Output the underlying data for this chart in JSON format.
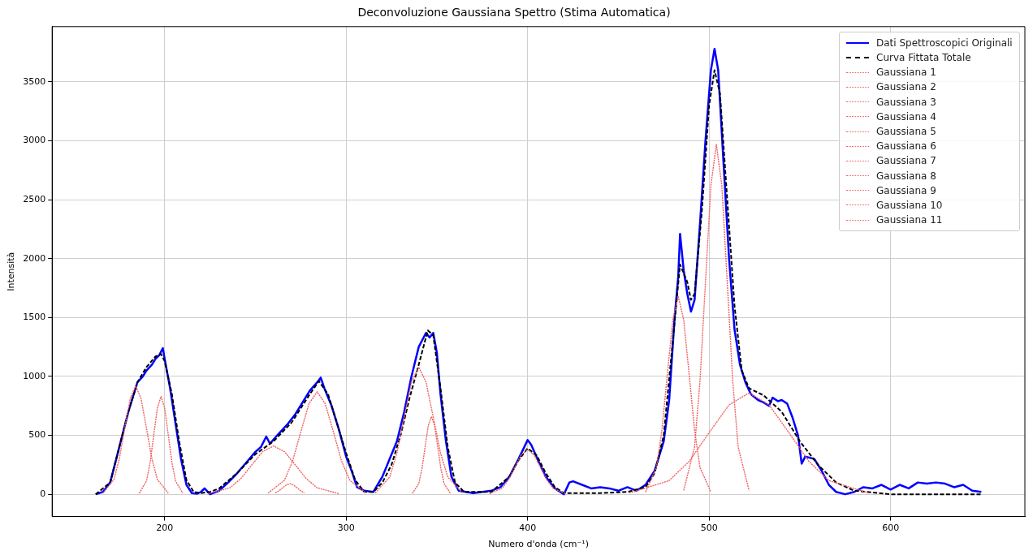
{
  "chart_data": {
    "type": "line",
    "title": "Deconvoluzione Gaussiana Spettro (Stima Automatica)",
    "xlabel": "Numero d'onda (cm⁻¹)",
    "ylabel": "Intensità",
    "xlim": [
      138,
      674
    ],
    "ylim": [
      -189,
      3969
    ],
    "xticks": [
      200,
      300,
      400,
      500,
      600
    ],
    "yticks": [
      0,
      500,
      1000,
      1500,
      2000,
      2500,
      3000,
      3500
    ],
    "grid": true,
    "legend": "top right",
    "series": [
      {
        "name": "Dati Spettroscopici Originali",
        "color": "#0000ff",
        "line_style": "solid",
        "x": [
          162,
          166,
          170,
          175,
          180,
          185,
          188,
          190,
          193,
          195,
          197,
          199,
          200,
          203,
          206,
          209,
          212,
          215,
          218,
          220,
          222,
          225,
          230,
          235,
          240,
          245,
          250,
          253,
          256,
          258,
          262,
          265,
          268,
          272,
          276,
          280,
          284,
          286,
          288,
          292,
          296,
          300,
          303,
          306,
          310,
          315,
          320,
          324,
          328,
          332,
          336,
          340,
          344,
          346,
          348,
          350,
          352,
          355,
          358,
          362,
          370,
          375,
          380,
          385,
          390,
          395,
          400,
          402,
          406,
          410,
          415,
          420,
          423,
          425,
          430,
          435,
          440,
          445,
          450,
          455,
          460,
          465,
          470,
          475,
          478,
          481,
          483,
          484,
          486,
          488,
          490,
          492,
          495,
          498,
          501,
          503,
          505,
          508,
          511,
          514,
          517,
          520,
          523,
          527,
          530,
          533,
          535,
          538,
          540,
          543,
          546,
          549,
          551,
          553,
          558,
          562,
          566,
          570,
          575,
          580,
          585,
          590,
          595,
          600,
          605,
          610,
          615,
          620,
          625,
          630,
          635,
          640,
          645,
          650
        ],
        "values": [
          0,
          20,
          100,
          400,
          700,
          950,
          1000,
          1050,
          1100,
          1150,
          1180,
          1240,
          1150,
          900,
          600,
          300,
          80,
          10,
          5,
          20,
          50,
          0,
          30,
          100,
          180,
          270,
          360,
          400,
          490,
          430,
          500,
          550,
          600,
          680,
          780,
          880,
          950,
          990,
          900,
          750,
          550,
          320,
          200,
          60,
          30,
          20,
          150,
          300,
          450,
          700,
          1000,
          1250,
          1370,
          1330,
          1370,
          1200,
          850,
          450,
          150,
          30,
          10,
          20,
          30,
          60,
          150,
          300,
          460,
          420,
          280,
          150,
          50,
          0,
          100,
          110,
          80,
          50,
          60,
          50,
          30,
          60,
          30,
          80,
          200,
          450,
          800,
          1500,
          1850,
          2210,
          1900,
          1700,
          1550,
          1650,
          2300,
          3000,
          3600,
          3780,
          3600,
          2800,
          2000,
          1400,
          1100,
          950,
          850,
          800,
          780,
          750,
          820,
          790,
          800,
          770,
          650,
          500,
          260,
          320,
          300,
          200,
          80,
          20,
          0,
          20,
          60,
          50,
          80,
          40,
          80,
          50,
          100,
          90,
          100,
          90,
          60,
          80,
          30,
          20
        ]
      },
      {
        "name": "Curva Fittata Totale",
        "color": "#000000",
        "line_style": "dashed",
        "x": [
          162,
          170,
          175,
          180,
          185,
          190,
          195,
          198,
          200,
          204,
          208,
          212,
          216,
          220,
          225,
          230,
          240,
          250,
          260,
          270,
          280,
          285,
          290,
          295,
          300,
          305,
          310,
          315,
          320,
          325,
          330,
          335,
          340,
          345,
          348,
          352,
          356,
          360,
          365,
          380,
          390,
          395,
          400,
          405,
          410,
          415,
          420,
          440,
          455,
          465,
          470,
          475,
          480,
          484,
          488,
          490,
          492,
          496,
          500,
          503,
          506,
          510,
          514,
          518,
          522,
          530,
          540,
          550,
          560,
          570,
          580,
          600,
          650
        ],
        "values": [
          0,
          100,
          400,
          700,
          950,
          1080,
          1170,
          1190,
          1130,
          850,
          450,
          120,
          20,
          10,
          20,
          50,
          180,
          340,
          450,
          610,
          850,
          960,
          850,
          600,
          350,
          120,
          20,
          20,
          100,
          250,
          500,
          820,
          1100,
          1390,
          1350,
          900,
          400,
          100,
          20,
          20,
          150,
          290,
          390,
          330,
          180,
          60,
          10,
          10,
          20,
          60,
          180,
          500,
          1300,
          1950,
          1800,
          1650,
          1700,
          2400,
          3300,
          3600,
          3400,
          2500,
          1600,
          1050,
          900,
          840,
          700,
          450,
          250,
          100,
          30,
          0,
          0
        ]
      },
      {
        "name": "Gaussiana 1",
        "color": "#f06060",
        "line_style": "dotted",
        "x": [
          166,
          172,
          175,
          178,
          181,
          184,
          187,
          190,
          193,
          196,
          202
        ],
        "values": [
          10,
          125,
          299,
          558,
          812,
          920,
          812,
          558,
          299,
          125,
          10
        ]
      },
      {
        "name": "Gaussiana 2",
        "color": "#f06060",
        "line_style": "dotted",
        "x": [
          186,
          190,
          192,
          194,
          196,
          198,
          200,
          202,
          204,
          206,
          210
        ],
        "values": [
          9,
          112,
          270,
          503,
          732,
          830,
          732,
          503,
          270,
          112,
          9
        ]
      },
      {
        "name": "Gaussiana 3",
        "color": "#f06060",
        "line_style": "dotted",
        "x": [
          224,
          236,
          242,
          248,
          254,
          260,
          266,
          272,
          278,
          284,
          296
        ],
        "values": [
          5,
          55,
          133,
          249,
          362,
          410,
          362,
          249,
          133,
          55,
          5
        ]
      },
      {
        "name": "Gaussiana 4",
        "color": "#f06060",
        "line_style": "dotted",
        "x": [
          261,
          263,
          265,
          267,
          269,
          271,
          273,
          275,
          277
        ],
        "values": [
          12,
          29,
          55,
          79,
          90,
          79,
          55,
          29,
          12
        ]
      },
      {
        "name": "Gaussiana 5",
        "color": "#f06060",
        "line_style": "dotted",
        "x": [
          257,
          266,
          270.5,
          275,
          279.5,
          284,
          288.5,
          293,
          297.5,
          302,
          311
        ],
        "values": [
          10,
          118,
          282,
          528,
          768,
          870,
          768,
          528,
          282,
          118,
          10
        ]
      },
      {
        "name": "Gaussiana 6",
        "color": "#f06060",
        "line_style": "dotted",
        "x": [
          316,
          324,
          328,
          332,
          336,
          340,
          344,
          348,
          352,
          356,
          364
        ],
        "values": [
          12,
          146,
          351,
          655,
          953,
          1080,
          953,
          655,
          351,
          146,
          12
        ]
      },
      {
        "name": "Gaussiana 7",
        "color": "#f06060",
        "line_style": "dotted",
        "x": [
          336.5,
          340,
          341.75,
          343.5,
          345.25,
          347,
          348.75,
          350.5,
          352.25,
          354,
          357.5
        ],
        "values": [
          7,
          89,
          214,
          400,
          582,
          660,
          582,
          400,
          214,
          89,
          7
        ]
      },
      {
        "name": "Gaussiana 8",
        "color": "#f06060",
        "line_style": "dotted",
        "x": [
          379,
          386,
          389.5,
          393,
          396.5,
          400,
          403.5,
          407,
          410.5,
          414,
          421
        ],
        "values": [
          4,
          51,
          123,
          230,
          335,
          380,
          335,
          230,
          123,
          51,
          4
        ]
      },
      {
        "name": "Gaussiana 9",
        "color": "#f06060",
        "line_style": "dotted",
        "x": [
          465,
          471,
          474,
          477,
          480,
          483,
          486,
          489,
          492,
          495,
          501
        ],
        "values": [
          19,
          227,
          545,
          1019,
          1483,
          1680,
          1483,
          1019,
          545,
          227,
          19
        ]
      },
      {
        "name": "Gaussiana 10",
        "color": "#f06060",
        "line_style": "dotted",
        "x": [
          486,
          492,
          495,
          498,
          501,
          504,
          507,
          510,
          513,
          516,
          522
        ],
        "values": [
          33,
          402,
          964,
          1801,
          2621,
          2970,
          2621,
          1801,
          964,
          402,
          33
        ]
      },
      {
        "name": "Gaussiana 11",
        "color": "#f06060",
        "line_style": "dotted",
        "x": [
          456,
          478,
          489,
          500,
          511,
          522,
          533,
          544,
          555,
          566,
          588
        ],
        "values": [
          10,
          116,
          279,
          522,
          759,
          860,
          759,
          522,
          279,
          116,
          10
        ]
      }
    ]
  }
}
